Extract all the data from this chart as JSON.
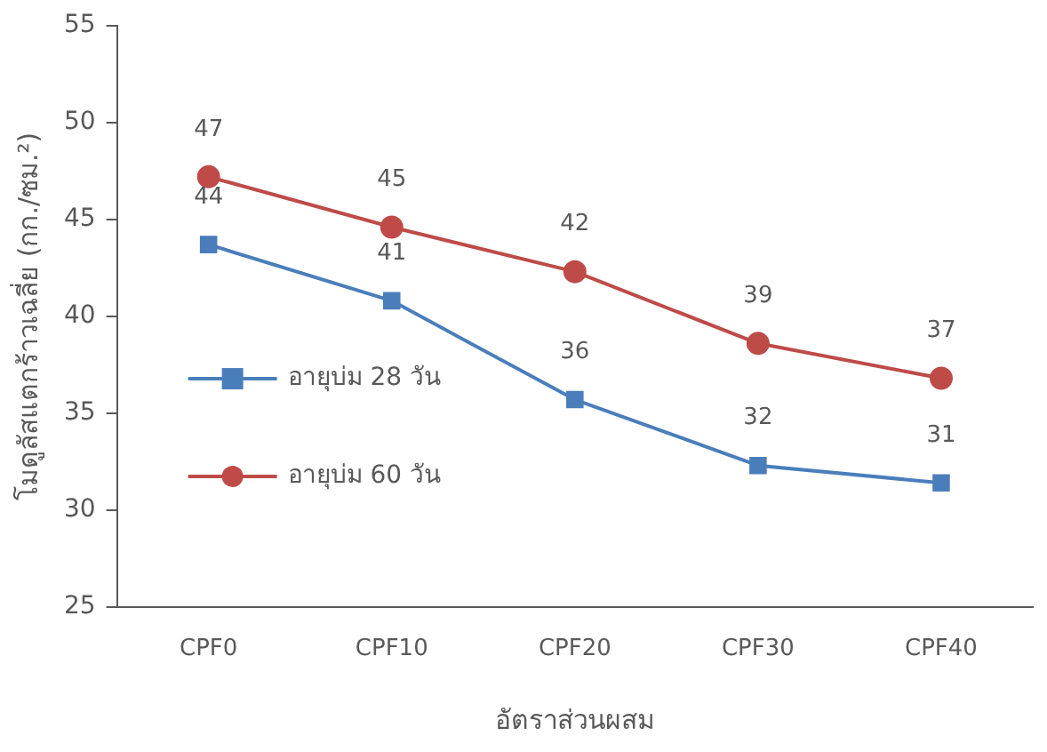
{
  "chart_data": {
    "type": "line",
    "xlabel": "อัตราส่วนผสม",
    "ylabel": "โมดูลัสแตกร้าวเฉลี่ย (กก./ซม.²)",
    "categories": [
      "CPF0",
      "CPF10",
      "CPF20",
      "CPF30",
      "CPF40"
    ],
    "series": [
      {
        "name": "อายุบ่ม 28 วัน",
        "color": "#4a7ebb",
        "marker": "square",
        "values": [
          43.7,
          40.8,
          35.7,
          32.3,
          31.4
        ],
        "value_labels": [
          "44",
          "41",
          "36",
          "32",
          "31"
        ]
      },
      {
        "name": "อายุบ่ม 60 วัน",
        "color": "#be4b48",
        "marker": "circle",
        "values": [
          47.2,
          44.6,
          42.3,
          38.6,
          36.8
        ],
        "value_labels": [
          "47",
          "45",
          "42",
          "39",
          "37"
        ]
      }
    ],
    "ylim": [
      25,
      55
    ],
    "yticks": [
      25,
      30,
      35,
      40,
      45,
      50,
      55
    ],
    "grid": false,
    "legend": "left",
    "line_style": "solid"
  }
}
